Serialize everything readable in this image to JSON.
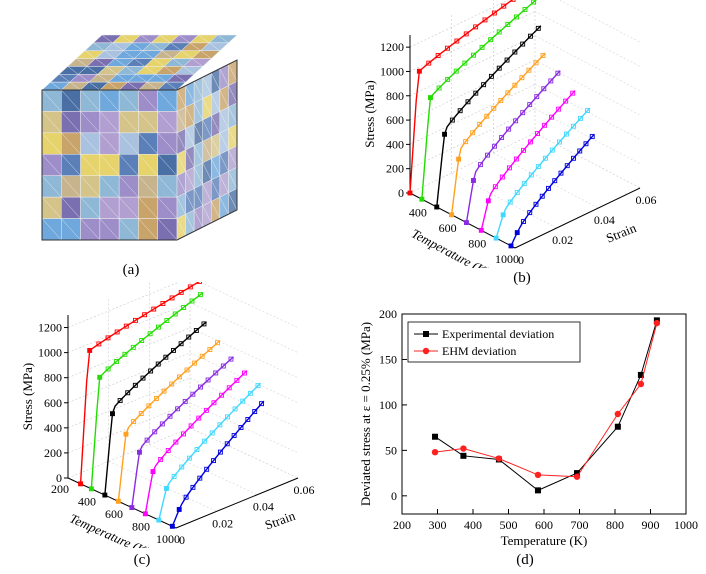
{
  "captions": {
    "a": "(a)",
    "b": "(b)",
    "c": "(c)",
    "d": "(d)"
  },
  "panel_a": {
    "content": "polycrystal-mesh-cube"
  },
  "chart_data": [
    {
      "panel": "b",
      "type": "line",
      "zlabel": "Stress (MPa)",
      "xlabel": "Temperature (K)",
      "ylabel": "Strain",
      "z_ticks": [
        "0",
        "200",
        "400",
        "600",
        "800",
        "1000",
        "1200"
      ],
      "x_ticks": [
        "400",
        "600",
        "800",
        "1000"
      ],
      "y_ticks": [
        "0",
        "0.02",
        "0.04",
        "0.06"
      ],
      "zlim": [
        0,
        1300
      ],
      "ylim": [
        0,
        0.06
      ],
      "series_temperatures": [
        293,
        373,
        473,
        573,
        673,
        773,
        873,
        973
      ],
      "series_colors": [
        "#ff0000",
        "#22dd00",
        "#000000",
        "#ffa020",
        "#8a2be2",
        "#ff00ff",
        "#40d8ff",
        "#0000dd"
      ],
      "series_plateau_stress": [
        960,
        800,
        600,
        500,
        370,
        250,
        190,
        110
      ],
      "series_final_stress": [
        1230,
        1190,
        1080,
        960,
        880,
        780,
        700,
        590
      ],
      "series_final_strain": [
        0.06,
        0.055,
        0.05,
        0.045,
        0.045,
        0.045,
        0.045,
        0.04
      ]
    },
    {
      "panel": "c",
      "type": "line",
      "zlabel": "Stress (MPa)",
      "xlabel": "Temperature (K)",
      "ylabel": "Strain",
      "z_ticks": [
        "0",
        "200",
        "400",
        "600",
        "800",
        "1000",
        "1200"
      ],
      "x_ticks": [
        "200",
        "400",
        "600",
        "800",
        "1000"
      ],
      "y_ticks": [
        "0",
        "0.02",
        "0.04",
        "0.06"
      ],
      "zlim": [
        0,
        1300
      ],
      "ylim": [
        0,
        0.06
      ],
      "series_temperatures": [
        293,
        373,
        473,
        573,
        673,
        773,
        873,
        973
      ],
      "series_colors": [
        "#ff0000",
        "#22dd00",
        "#000000",
        "#ffa020",
        "#8a2be2",
        "#ff00ff",
        "#40d8ff",
        "#0000dd"
      ],
      "series_plateau_stress": [
        1030,
        860,
        660,
        540,
        440,
        330,
        240,
        130
      ],
      "series_final_stress": [
        1230,
        1200,
        1050,
        950,
        870,
        810,
        760,
        700
      ],
      "series_final_strain": [
        0.06,
        0.055,
        0.05,
        0.05,
        0.05,
        0.05,
        0.05,
        0.045
      ]
    },
    {
      "panel": "d",
      "type": "line",
      "xlabel": "Temperature (K)",
      "ylabel": "Deviated stress at  ε = 0.25% (MPa)",
      "xlim": [
        200,
        1000
      ],
      "ylim": [
        -20,
        200
      ],
      "x_ticks": [
        200,
        300,
        400,
        500,
        600,
        700,
        800,
        900,
        1000
      ],
      "y_ticks": [
        0,
        50,
        100,
        150,
        200
      ],
      "legend_position": "top-left",
      "series": [
        {
          "name": "Experimental deviation",
          "color": "#000000",
          "marker": "square",
          "x": [
            293,
            373,
            473,
            583,
            693,
            808,
            873,
            918
          ],
          "y": [
            65,
            44,
            40,
            6,
            25,
            76,
            133,
            193
          ]
        },
        {
          "name": "EHM deviation",
          "color": "#ff2020",
          "marker": "circle",
          "x": [
            293,
            373,
            473,
            583,
            693,
            808,
            873,
            918
          ],
          "y": [
            48,
            52,
            41,
            23,
            21,
            90,
            123,
            190
          ]
        }
      ]
    }
  ]
}
